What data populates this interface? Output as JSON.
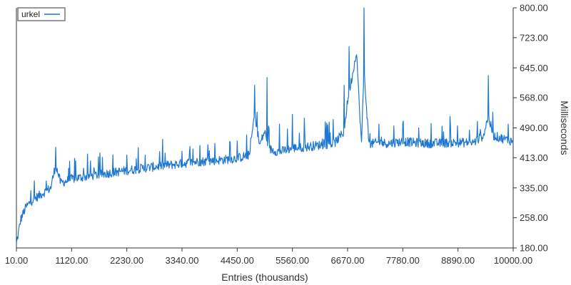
{
  "chart_data": {
    "type": "line",
    "title": "",
    "xlabel": "Entries (thousands)",
    "ylabel": "Milliseconds",
    "xlim": [
      10,
      10000
    ],
    "ylim": [
      180,
      800
    ],
    "y_axis_side": "right",
    "grid": false,
    "legend": {
      "placement": "top-left"
    },
    "x_ticks": [
      "10.00",
      "1120.00",
      "2230.00",
      "3340.00",
      "4450.00",
      "5560.00",
      "6670.00",
      "7780.00",
      "8890.00",
      "10000.00"
    ],
    "x_tick_values": [
      10,
      1120,
      2230,
      3340,
      4450,
      5560,
      6670,
      7780,
      8890,
      10000
    ],
    "y_ticks": [
      "180.00",
      "258.00",
      "335.00",
      "413.00",
      "490.00",
      "568.00",
      "645.00",
      "723.00",
      "800.00"
    ],
    "y_tick_values": [
      180,
      258,
      335,
      413,
      490,
      568,
      645,
      723,
      800
    ],
    "series": [
      {
        "name": "urkel",
        "color": "#1f77d4",
        "x": [
          10,
          100,
          200,
          300,
          500,
          700,
          800,
          900,
          1000,
          1120,
          1300,
          1500,
          1700,
          1900,
          2230,
          2500,
          2800,
          3000,
          3340,
          3600,
          3900,
          4200,
          4450,
          4700,
          4800,
          4900,
          5000,
          5100,
          5300,
          5560,
          5800,
          6000,
          6200,
          6400,
          6600,
          6670,
          6800,
          6850,
          6900,
          6950,
          7000,
          7100,
          7300,
          7500,
          7780,
          8000,
          8300,
          8600,
          8890,
          9200,
          9400,
          9500,
          9600,
          9800,
          10000
        ],
        "y": [
          190,
          255,
          285,
          300,
          318,
          335,
          395,
          348,
          352,
          358,
          362,
          366,
          370,
          374,
          380,
          385,
          390,
          393,
          398,
          402,
          405,
          408,
          412,
          420,
          530,
          445,
          480,
          435,
          428,
          438,
          440,
          444,
          447,
          450,
          480,
          560,
          650,
          690,
          560,
          450,
          640,
          448,
          452,
          450,
          455,
          452,
          450,
          451,
          452,
          452,
          470,
          520,
          470,
          462,
          455
        ]
      }
    ],
    "spikes": {
      "x": [
        800,
        1200,
        1500,
        2230,
        2600,
        3000,
        3340,
        3700,
        4000,
        4300,
        4800,
        5050,
        5300,
        5560,
        5800,
        6300,
        6600,
        6700,
        7000,
        7300,
        7600,
        8100,
        8600,
        9500,
        9900
      ],
      "y": [
        440,
        405,
        405,
        420,
        420,
        425,
        430,
        445,
        450,
        455,
        600,
        620,
        500,
        525,
        515,
        505,
        600,
        700,
        800,
        500,
        495,
        490,
        480,
        625,
        500
      ]
    }
  }
}
